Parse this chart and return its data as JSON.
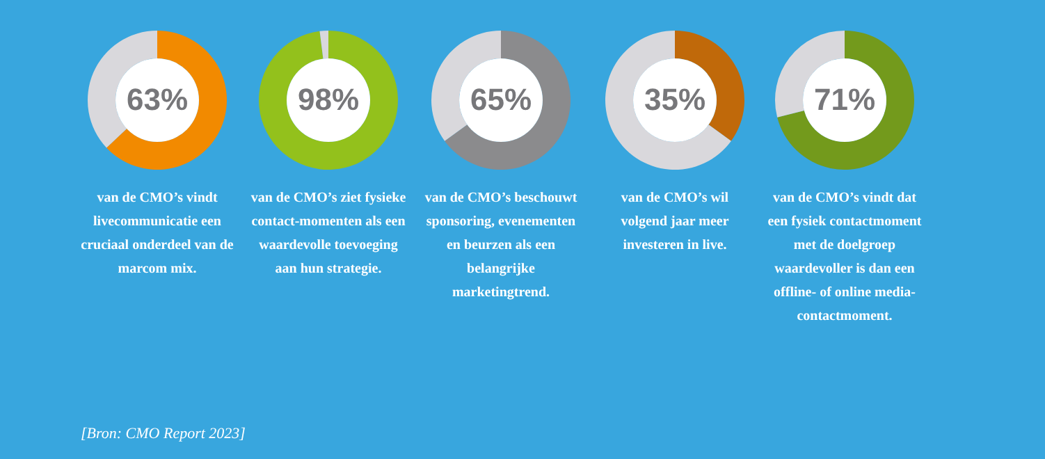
{
  "chart_data": [
    {
      "type": "donut",
      "categories": [
        null,
        null
      ],
      "values": [
        63,
        37
      ],
      "colors": [
        "#f28a00",
        "#d9d8dc"
      ],
      "value_labels": [
        "63%",
        null
      ],
      "annotations": [
        "van de CMO’s vindt livecommunicatie een cruciaal onderdeel van de marcom mix.",
        "[Bron: CMO Report 2023]"
      ]
    },
    {
      "type": "donut",
      "categories": [
        null,
        null
      ],
      "values": [
        98,
        2
      ],
      "colors": [
        "#93c11c",
        "#d9d8dc"
      ],
      "value_labels": [
        "98%",
        null
      ],
      "annotations": [
        "van de CMO’s ziet fysieke contact-momenten als een waardevolle toevoeging aan hun strategie."
      ]
    },
    {
      "type": "donut",
      "categories": [
        null,
        null
      ],
      "values": [
        65,
        35
      ],
      "colors": [
        "#8b8b8d",
        "#d9d8dc"
      ],
      "value_labels": [
        "65%",
        null
      ],
      "annotations": [
        "van de CMO’s beschouwt sponsoring, evenementen en beurzen als een belangrijke marketingtrend."
      ]
    },
    {
      "type": "donut",
      "categories": [
        null,
        null
      ],
      "values": [
        35,
        65
      ],
      "colors": [
        "#c0690a",
        "#d9d8dc"
      ],
      "value_labels": [
        "35%",
        null
      ],
      "annotations": [
        "van de CMO’s wil volgend jaar meer investeren in live."
      ]
    },
    {
      "type": "donut",
      "categories": [
        null,
        null
      ],
      "values": [
        71,
        29
      ],
      "colors": [
        "#739a1c",
        "#d9d8dc"
      ],
      "value_labels": [
        "71%",
        null
      ],
      "annotations": [
        "van de CMO’s vindt dat een fysiek contactmoment met de doelgroep waardevoller is dan een offline- of online media-contactmoment."
      ]
    }
  ]
}
